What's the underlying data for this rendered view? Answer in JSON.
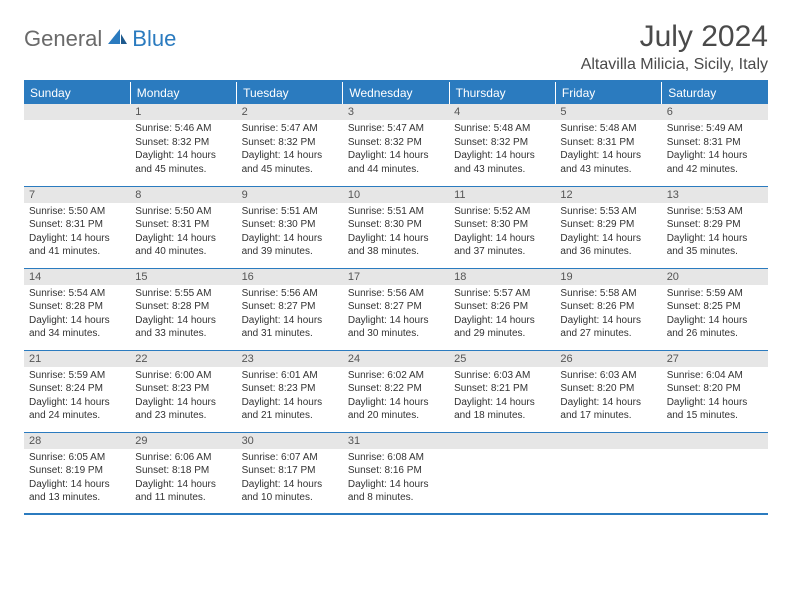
{
  "brand": {
    "part1": "General",
    "part2": "Blue"
  },
  "title": {
    "month": "July 2024",
    "location": "Altavilla Milicia, Sicily, Italy"
  },
  "colors": {
    "accent": "#2b7bbf",
    "daynum_bg": "#e6e6e6",
    "text": "#333333"
  },
  "weekdays": [
    "Sunday",
    "Monday",
    "Tuesday",
    "Wednesday",
    "Thursday",
    "Friday",
    "Saturday"
  ],
  "weeks": [
    [
      null,
      {
        "n": "1",
        "sr": "Sunrise: 5:46 AM",
        "ss": "Sunset: 8:32 PM",
        "dl": "Daylight: 14 hours and 45 minutes."
      },
      {
        "n": "2",
        "sr": "Sunrise: 5:47 AM",
        "ss": "Sunset: 8:32 PM",
        "dl": "Daylight: 14 hours and 45 minutes."
      },
      {
        "n": "3",
        "sr": "Sunrise: 5:47 AM",
        "ss": "Sunset: 8:32 PM",
        "dl": "Daylight: 14 hours and 44 minutes."
      },
      {
        "n": "4",
        "sr": "Sunrise: 5:48 AM",
        "ss": "Sunset: 8:32 PM",
        "dl": "Daylight: 14 hours and 43 minutes."
      },
      {
        "n": "5",
        "sr": "Sunrise: 5:48 AM",
        "ss": "Sunset: 8:31 PM",
        "dl": "Daylight: 14 hours and 43 minutes."
      },
      {
        "n": "6",
        "sr": "Sunrise: 5:49 AM",
        "ss": "Sunset: 8:31 PM",
        "dl": "Daylight: 14 hours and 42 minutes."
      }
    ],
    [
      {
        "n": "7",
        "sr": "Sunrise: 5:50 AM",
        "ss": "Sunset: 8:31 PM",
        "dl": "Daylight: 14 hours and 41 minutes."
      },
      {
        "n": "8",
        "sr": "Sunrise: 5:50 AM",
        "ss": "Sunset: 8:31 PM",
        "dl": "Daylight: 14 hours and 40 minutes."
      },
      {
        "n": "9",
        "sr": "Sunrise: 5:51 AM",
        "ss": "Sunset: 8:30 PM",
        "dl": "Daylight: 14 hours and 39 minutes."
      },
      {
        "n": "10",
        "sr": "Sunrise: 5:51 AM",
        "ss": "Sunset: 8:30 PM",
        "dl": "Daylight: 14 hours and 38 minutes."
      },
      {
        "n": "11",
        "sr": "Sunrise: 5:52 AM",
        "ss": "Sunset: 8:30 PM",
        "dl": "Daylight: 14 hours and 37 minutes."
      },
      {
        "n": "12",
        "sr": "Sunrise: 5:53 AM",
        "ss": "Sunset: 8:29 PM",
        "dl": "Daylight: 14 hours and 36 minutes."
      },
      {
        "n": "13",
        "sr": "Sunrise: 5:53 AM",
        "ss": "Sunset: 8:29 PM",
        "dl": "Daylight: 14 hours and 35 minutes."
      }
    ],
    [
      {
        "n": "14",
        "sr": "Sunrise: 5:54 AM",
        "ss": "Sunset: 8:28 PM",
        "dl": "Daylight: 14 hours and 34 minutes."
      },
      {
        "n": "15",
        "sr": "Sunrise: 5:55 AM",
        "ss": "Sunset: 8:28 PM",
        "dl": "Daylight: 14 hours and 33 minutes."
      },
      {
        "n": "16",
        "sr": "Sunrise: 5:56 AM",
        "ss": "Sunset: 8:27 PM",
        "dl": "Daylight: 14 hours and 31 minutes."
      },
      {
        "n": "17",
        "sr": "Sunrise: 5:56 AM",
        "ss": "Sunset: 8:27 PM",
        "dl": "Daylight: 14 hours and 30 minutes."
      },
      {
        "n": "18",
        "sr": "Sunrise: 5:57 AM",
        "ss": "Sunset: 8:26 PM",
        "dl": "Daylight: 14 hours and 29 minutes."
      },
      {
        "n": "19",
        "sr": "Sunrise: 5:58 AM",
        "ss": "Sunset: 8:26 PM",
        "dl": "Daylight: 14 hours and 27 minutes."
      },
      {
        "n": "20",
        "sr": "Sunrise: 5:59 AM",
        "ss": "Sunset: 8:25 PM",
        "dl": "Daylight: 14 hours and 26 minutes."
      }
    ],
    [
      {
        "n": "21",
        "sr": "Sunrise: 5:59 AM",
        "ss": "Sunset: 8:24 PM",
        "dl": "Daylight: 14 hours and 24 minutes."
      },
      {
        "n": "22",
        "sr": "Sunrise: 6:00 AM",
        "ss": "Sunset: 8:23 PM",
        "dl": "Daylight: 14 hours and 23 minutes."
      },
      {
        "n": "23",
        "sr": "Sunrise: 6:01 AM",
        "ss": "Sunset: 8:23 PM",
        "dl": "Daylight: 14 hours and 21 minutes."
      },
      {
        "n": "24",
        "sr": "Sunrise: 6:02 AM",
        "ss": "Sunset: 8:22 PM",
        "dl": "Daylight: 14 hours and 20 minutes."
      },
      {
        "n": "25",
        "sr": "Sunrise: 6:03 AM",
        "ss": "Sunset: 8:21 PM",
        "dl": "Daylight: 14 hours and 18 minutes."
      },
      {
        "n": "26",
        "sr": "Sunrise: 6:03 AM",
        "ss": "Sunset: 8:20 PM",
        "dl": "Daylight: 14 hours and 17 minutes."
      },
      {
        "n": "27",
        "sr": "Sunrise: 6:04 AM",
        "ss": "Sunset: 8:20 PM",
        "dl": "Daylight: 14 hours and 15 minutes."
      }
    ],
    [
      {
        "n": "28",
        "sr": "Sunrise: 6:05 AM",
        "ss": "Sunset: 8:19 PM",
        "dl": "Daylight: 14 hours and 13 minutes."
      },
      {
        "n": "29",
        "sr": "Sunrise: 6:06 AM",
        "ss": "Sunset: 8:18 PM",
        "dl": "Daylight: 14 hours and 11 minutes."
      },
      {
        "n": "30",
        "sr": "Sunrise: 6:07 AM",
        "ss": "Sunset: 8:17 PM",
        "dl": "Daylight: 14 hours and 10 minutes."
      },
      {
        "n": "31",
        "sr": "Sunrise: 6:08 AM",
        "ss": "Sunset: 8:16 PM",
        "dl": "Daylight: 14 hours and 8 minutes."
      },
      null,
      null,
      null
    ]
  ]
}
